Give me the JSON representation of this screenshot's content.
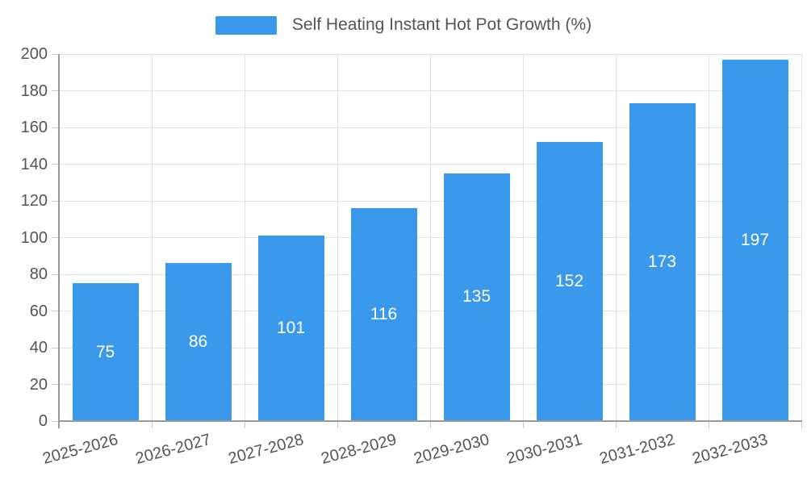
{
  "legend": {
    "label": "Self Heating Instant Hot Pot Growth (%)"
  },
  "chart_data": {
    "type": "bar",
    "title": "Self Heating Instant Hot Pot Growth (%)",
    "categories": [
      "2025-2026",
      "2026-2027",
      "2027-2028",
      "2028-2029",
      "2029-2030",
      "2030-2031",
      "2031-2032",
      "2032-2033"
    ],
    "values": [
      75,
      86,
      101,
      116,
      135,
      152,
      173,
      197
    ],
    "value_labels_shown": true,
    "xlabel": "",
    "ylabel": "",
    "ylim": [
      0,
      200
    ],
    "ytick_step": 20,
    "yticks": [
      0,
      20,
      40,
      60,
      80,
      100,
      120,
      140,
      160,
      180,
      200
    ],
    "grid": true,
    "legend_position": "top-center",
    "x_label_rotation_deg": -15,
    "colors": {
      "bar": "#3B99EC",
      "bar_value_label": "#FFFFFF",
      "axis_labels": "#555555",
      "legend_text": "#555555",
      "gridline": "#E3E3E3",
      "axis_line": "#9B9B9B",
      "tick": "#CCCCCC",
      "background": "#FFFFFF"
    }
  }
}
